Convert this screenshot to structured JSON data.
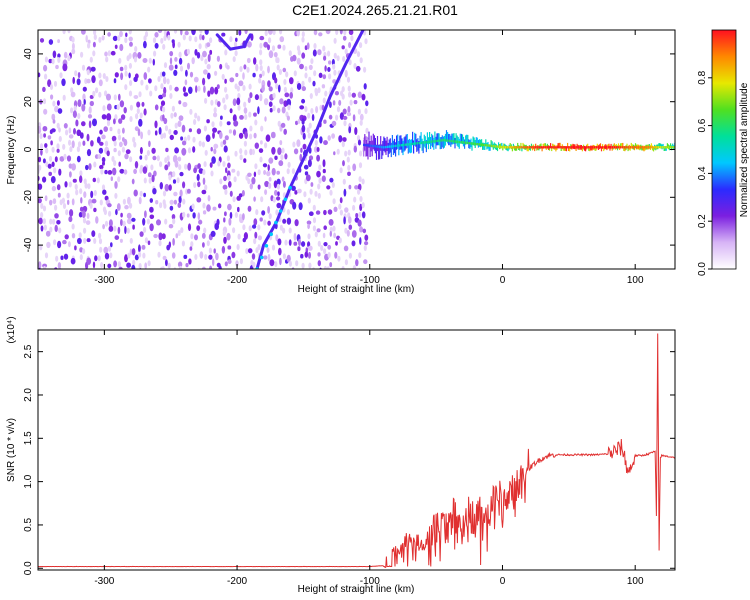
{
  "figure": {
    "title": "C2E1.2024.265.21.21.R01"
  },
  "chart_data": [
    {
      "type": "heatmap",
      "title": "C2E1.2024.265.21.21.R01",
      "xlabel": "Height of straight line (km)",
      "ylabel": "Frequency (Hz)",
      "xlim": [
        -350,
        130
      ],
      "ylim": [
        -50,
        50
      ],
      "xticks": [
        -300,
        -200,
        -100,
        0,
        100
      ],
      "xtick_labels": [
        "-300",
        "-200",
        "-100",
        "0",
        "100"
      ],
      "yticks": [
        -40,
        -20,
        0,
        20,
        40
      ],
      "ytick_labels": [
        "-40",
        "-20",
        "0",
        "20",
        "40"
      ],
      "colorbar": {
        "label": "Normalized spectral amplitude",
        "range": [
          0.0,
          1.0
        ],
        "ticks": [
          0.0,
          0.2,
          0.4,
          0.6,
          0.8
        ],
        "tick_labels": [
          "0.0",
          "0.2",
          "0.4",
          "0.6",
          "0.8"
        ],
        "colormap": [
          "#ffffff",
          "#d7b4f6",
          "#7b1fe0",
          "#2b2bff",
          "#00c8ff",
          "#00e09a",
          "#50e020",
          "#e8e800",
          "#ff8800",
          "#ff1020"
        ]
      },
      "features": {
        "noise_region_x": [
          -350,
          -105
        ],
        "noise_density": 0.35,
        "diagonal_trace": {
          "x": [
            -185,
            -180,
            -170,
            -160,
            -150,
            -140,
            -130,
            -118,
            -105
          ],
          "y": [
            -50,
            -40,
            -30,
            -16,
            -4,
            8,
            22,
            36,
            50
          ]
        },
        "top_arc": {
          "x": [
            -215,
            -205,
            -195,
            -190
          ],
          "y": [
            48,
            42,
            43,
            48
          ]
        },
        "signal_band": {
          "x": [
            -105,
            -90,
            -75,
            -60,
            -45,
            -30,
            -15,
            0,
            15,
            30,
            50,
            70,
            85,
            95,
            110,
            118,
            130
          ],
          "center": [
            2,
            1,
            2,
            3,
            4,
            3,
            2,
            1,
            1,
            1,
            1,
            1,
            1,
            1,
            1,
            1,
            1
          ],
          "width": [
            7,
            6,
            6,
            5,
            5,
            4,
            3,
            2,
            2,
            2,
            2,
            2,
            2,
            2,
            2,
            2,
            2
          ],
          "amplitude": [
            0.22,
            0.3,
            0.42,
            0.45,
            0.48,
            0.5,
            0.55,
            0.65,
            0.8,
            0.9,
            0.93,
            0.95,
            0.88,
            0.82,
            0.78,
            0.65,
            0.6
          ]
        }
      }
    },
    {
      "type": "line",
      "xlabel": "Height of straight line (km)",
      "ylabel": "SNR (10 * v/v)",
      "y_multiplier": "(x10⁴)",
      "xlim": [
        -350,
        130
      ],
      "ylim": [
        -0.02,
        2.75
      ],
      "xticks": [
        -300,
        -200,
        -100,
        0,
        100
      ],
      "xtick_labels": [
        "-300",
        "-200",
        "-100",
        "0",
        "100"
      ],
      "yticks": [
        0.0,
        0.5,
        1.0,
        1.5,
        2.0,
        2.5
      ],
      "ytick_labels": [
        "0.0",
        "0.5",
        "1.0",
        "1.5",
        "2.0",
        "2.5"
      ],
      "color": "#e03030",
      "series": [
        {
          "x": [
            -350,
            -300,
            -250,
            -200,
            -150,
            -100,
            -90,
            -85,
            -80,
            -75,
            -70,
            -65,
            -60,
            -55,
            -50,
            -45,
            -40,
            -35,
            -30,
            -25,
            -20,
            -15,
            -10,
            -5,
            0,
            5,
            10,
            15,
            20,
            25,
            30,
            35,
            40,
            50,
            60,
            70,
            80,
            85,
            90,
            95,
            100,
            105,
            110,
            115,
            116,
            117,
            118,
            119,
            120,
            125,
            130
          ],
          "y": [
            0.02,
            0.02,
            0.02,
            0.02,
            0.02,
            0.02,
            0.03,
            0.1,
            0.22,
            0.3,
            0.35,
            0.3,
            0.28,
            0.35,
            0.45,
            0.5,
            0.55,
            0.6,
            0.5,
            0.6,
            0.65,
            0.55,
            0.7,
            0.75,
            0.8,
            0.85,
            0.95,
            1.05,
            1.15,
            1.22,
            1.27,
            1.3,
            1.31,
            1.31,
            1.31,
            1.31,
            1.32,
            1.35,
            1.4,
            1.1,
            1.3,
            1.3,
            1.32,
            1.35,
            0.6,
            2.7,
            0.2,
            1.28,
            1.3,
            1.29,
            1.28
          ]
        }
      ]
    }
  ]
}
